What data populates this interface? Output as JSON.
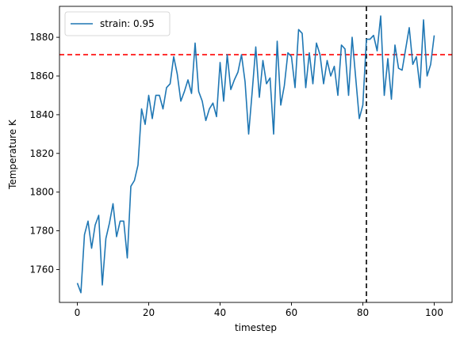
{
  "chart_data": {
    "type": "line",
    "xlabel": "timestep",
    "ylabel": "Temperature K",
    "xlim": [
      -5,
      105
    ],
    "ylim": [
      1743,
      1896
    ],
    "xticks": [
      0,
      20,
      40,
      60,
      80,
      100
    ],
    "yticks": [
      1760,
      1780,
      1800,
      1820,
      1840,
      1860,
      1880
    ],
    "legend_position": "top-left",
    "grid": false,
    "reference_lines": [
      {
        "orientation": "horizontal",
        "value": 1871,
        "color": "#ff0000",
        "style": "dashed"
      },
      {
        "orientation": "vertical",
        "value": 81,
        "color": "#000000",
        "style": "dashed"
      }
    ],
    "series": [
      {
        "name": "strain: 0.95",
        "color": "#1f77b4",
        "x": [
          0,
          1,
          2,
          3,
          4,
          5,
          6,
          7,
          8,
          9,
          10,
          11,
          12,
          13,
          14,
          15,
          16,
          17,
          18,
          19,
          20,
          21,
          22,
          23,
          24,
          25,
          26,
          27,
          28,
          29,
          30,
          31,
          32,
          33,
          34,
          35,
          36,
          37,
          38,
          39,
          40,
          41,
          42,
          43,
          44,
          45,
          46,
          47,
          48,
          49,
          50,
          51,
          52,
          53,
          54,
          55,
          56,
          57,
          58,
          59,
          60,
          61,
          62,
          63,
          64,
          65,
          66,
          67,
          68,
          69,
          70,
          71,
          72,
          73,
          74,
          75,
          76,
          77,
          78,
          79,
          80,
          81,
          82,
          83,
          84,
          85,
          86,
          87,
          88,
          89,
          90,
          91,
          92,
          93,
          94,
          95,
          96,
          97,
          98,
          99,
          100
        ],
        "y": [
          1753,
          1748,
          1778,
          1785,
          1771,
          1783,
          1788,
          1752,
          1776,
          1784,
          1794,
          1777,
          1785,
          1785,
          1766,
          1803,
          1806,
          1814,
          1843,
          1835,
          1850,
          1838,
          1850,
          1850,
          1843,
          1854,
          1856,
          1870,
          1861,
          1847,
          1852,
          1858,
          1851,
          1877,
          1852,
          1847,
          1837,
          1843,
          1846,
          1839,
          1867,
          1847,
          1871,
          1853,
          1858,
          1862,
          1871,
          1857,
          1830,
          1852,
          1875,
          1849,
          1868,
          1856,
          1859,
          1830,
          1878,
          1845,
          1855,
          1872,
          1870,
          1854,
          1884,
          1882,
          1854,
          1872,
          1856,
          1877,
          1871,
          1856,
          1868,
          1860,
          1865,
          1850,
          1876,
          1874,
          1850,
          1880,
          1859,
          1838,
          1845,
          1879,
          1879,
          1881,
          1873,
          1891,
          1850,
          1869,
          1848,
          1876,
          1864,
          1863,
          1874,
          1885,
          1866,
          1870,
          1854,
          1889,
          1860,
          1866,
          1881
        ]
      }
    ]
  }
}
